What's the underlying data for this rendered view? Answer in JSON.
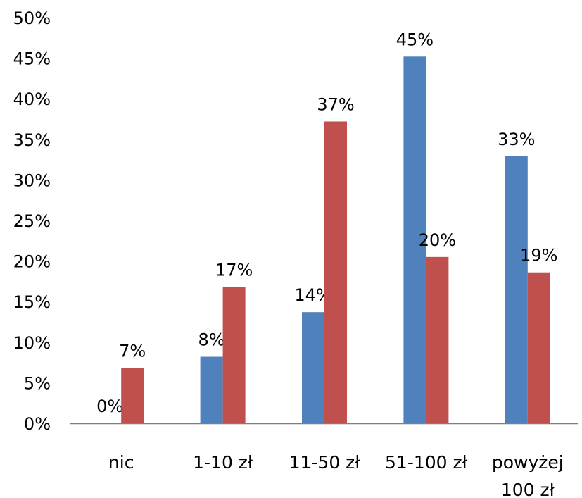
{
  "chart_data": {
    "type": "bar",
    "categories": [
      [
        "nic"
      ],
      [
        "1-10 zł"
      ],
      [
        "11-50 zł"
      ],
      [
        "51-100 zł"
      ],
      [
        "powyżej",
        "100 zł"
      ]
    ],
    "series": [
      {
        "color": "#4f81bd",
        "values": [
          0,
          8.2,
          13.7,
          45.2,
          32.9
        ],
        "labels": [
          "0%",
          "8%",
          "14%",
          "45%",
          "33%"
        ]
      },
      {
        "color": "#c0504d",
        "values": [
          6.8,
          16.8,
          37.2,
          20.5,
          18.6
        ],
        "labels": [
          "7%",
          "17%",
          "37%",
          "20%",
          "19%"
        ]
      }
    ],
    "ylim": [
      0,
      50
    ],
    "yticks": [
      0,
      5,
      10,
      15,
      20,
      25,
      30,
      35,
      40,
      45,
      50
    ],
    "ytick_labels": [
      "0%",
      "5%",
      "10%",
      "15%",
      "20%",
      "25%",
      "30%",
      "35%",
      "40%",
      "45%",
      "50%"
    ],
    "axis_color": "#7f7f7f",
    "grid": false,
    "legend": "none"
  }
}
